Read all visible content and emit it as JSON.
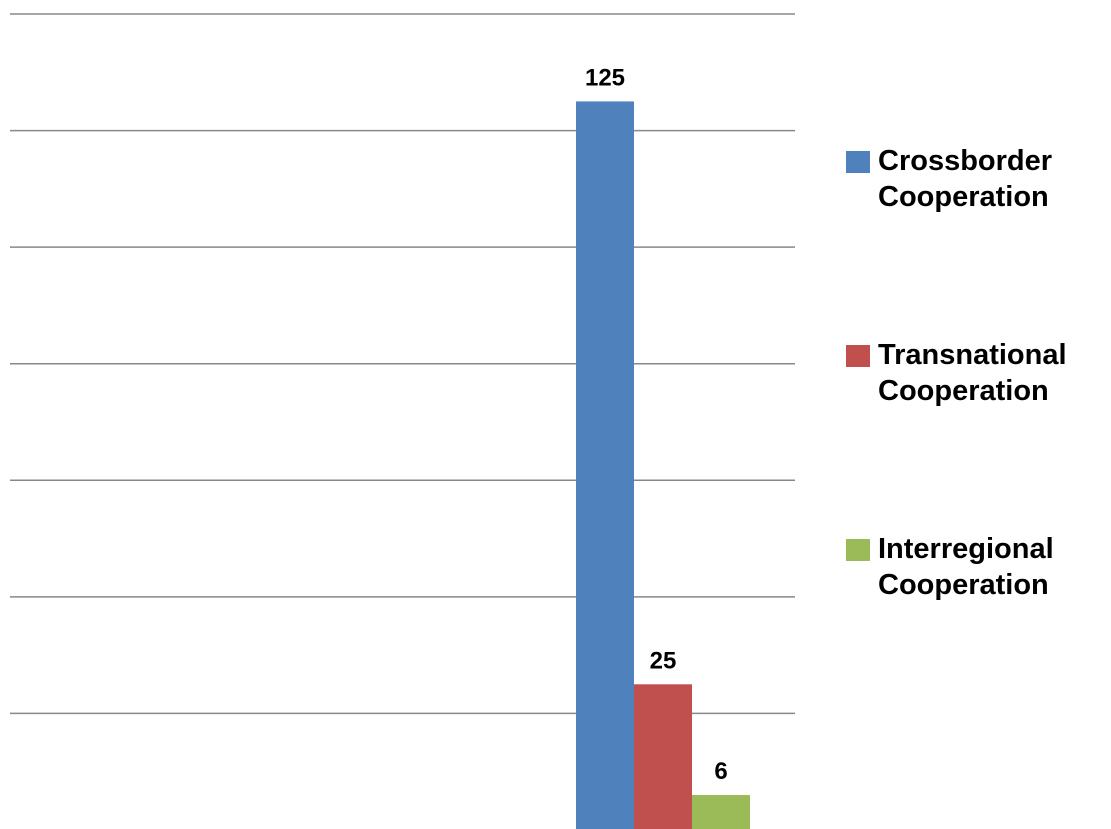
{
  "chart_data": {
    "type": "bar",
    "categories": [
      null
    ],
    "series": [
      {
        "name": "Crossborder Cooperation",
        "color": "#4f81bd",
        "values": [
          125
        ]
      },
      {
        "name": "Transnational Cooperation",
        "color": "#c0504d",
        "values": [
          25
        ]
      },
      {
        "name": "Interregional Cooperation",
        "color": "#9bbb59",
        "values": [
          6
        ]
      }
    ],
    "ylim": [
      0,
      140
    ],
    "yticks": [
      0,
      20,
      40,
      60,
      80,
      100,
      120,
      140
    ],
    "grid": true,
    "legend": "right"
  }
}
